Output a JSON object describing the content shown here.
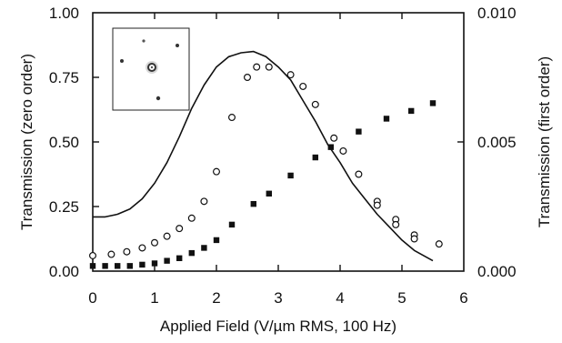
{
  "chart_data": {
    "type": "line",
    "title": "",
    "xlabel": "Applied Field (V/µm RMS, 100 Hz)",
    "ylabel_left": "Transmission (zero order)",
    "ylabel_right": "Transmission (first order)",
    "xlim": [
      0,
      6
    ],
    "ylim_left": [
      0,
      1.0
    ],
    "ylim_right": [
      0,
      0.01
    ],
    "x_ticks": [
      "0",
      "1",
      "2",
      "3",
      "4",
      "5",
      "6"
    ],
    "y_left_ticks": [
      "0.00",
      "0.25",
      "0.50",
      "0.75",
      "1.00"
    ],
    "y_right_ticks": [
      "0.000",
      "0.005",
      "0.010"
    ],
    "grid": false,
    "legend": "none",
    "inset": "diffraction pattern image, top-left",
    "series": [
      {
        "kind": "line",
        "axis": "left",
        "style": "solid line",
        "color": "#111111",
        "x": [
          0,
          0.2,
          0.4,
          0.6,
          0.8,
          1.0,
          1.2,
          1.4,
          1.6,
          1.8,
          2.0,
          2.2,
          2.4,
          2.6,
          2.8,
          3.0,
          3.2,
          3.4,
          3.6,
          3.8,
          4.0,
          4.2,
          4.4,
          4.6,
          4.8,
          5.0,
          5.2,
          5.5
        ],
        "y": [
          0.21,
          0.21,
          0.22,
          0.24,
          0.28,
          0.34,
          0.42,
          0.52,
          0.63,
          0.72,
          0.79,
          0.83,
          0.845,
          0.85,
          0.83,
          0.79,
          0.74,
          0.66,
          0.58,
          0.49,
          0.42,
          0.34,
          0.28,
          0.22,
          0.17,
          0.12,
          0.08,
          0.04
        ]
      },
      {
        "kind": "scatter",
        "axis": "left",
        "marker": "open circle",
        "color": "#111111",
        "x": [
          0.0,
          0.3,
          0.55,
          0.8,
          1.0,
          1.2,
          1.4,
          1.6,
          1.8,
          2.0,
          2.25,
          2.5,
          2.65,
          2.85,
          3.2,
          3.4,
          3.6,
          3.9,
          4.05,
          4.3,
          4.6,
          4.6,
          4.9,
          4.9,
          5.2,
          5.2,
          5.6
        ],
        "y": [
          0.06,
          0.065,
          0.075,
          0.09,
          0.11,
          0.135,
          0.165,
          0.205,
          0.27,
          0.385,
          0.595,
          0.75,
          0.79,
          0.79,
          0.76,
          0.715,
          0.645,
          0.515,
          0.465,
          0.375,
          0.27,
          0.255,
          0.2,
          0.18,
          0.14,
          0.125,
          0.105
        ]
      },
      {
        "kind": "scatter",
        "axis": "right",
        "marker": "filled square",
        "color": "#111111",
        "x": [
          0.0,
          0.2,
          0.4,
          0.6,
          0.8,
          1.0,
          1.2,
          1.4,
          1.6,
          1.8,
          2.0,
          2.25,
          2.6,
          2.85,
          3.2,
          3.6,
          3.85,
          4.3,
          4.75,
          5.15,
          5.5
        ],
        "y": [
          0.0002,
          0.0002,
          0.0002,
          0.0002,
          0.00025,
          0.0003,
          0.0004,
          0.0005,
          0.0007,
          0.0009,
          0.0012,
          0.0018,
          0.0026,
          0.003,
          0.0037,
          0.0044,
          0.0048,
          0.0054,
          0.0059,
          0.0062,
          0.0065
        ]
      }
    ]
  }
}
